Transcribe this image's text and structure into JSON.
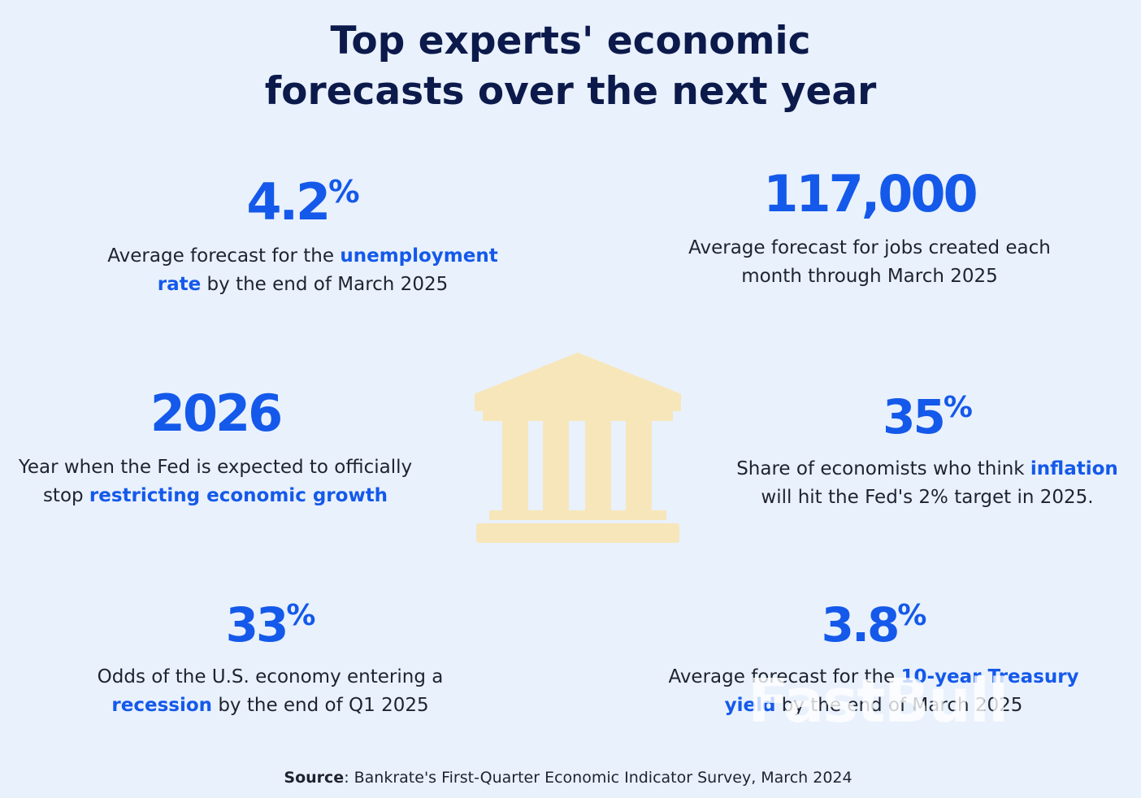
{
  "title": {
    "line1": "Top experts' economic",
    "line2": "forecasts over the next year"
  },
  "stats": {
    "unemployment": {
      "value": "4.2",
      "unit": "%",
      "desc1_pre": "Average forecast for the ",
      "desc1_hl": "unemployment",
      "desc2_hl": "rate",
      "desc2_post": " by the end of March 2025"
    },
    "jobs": {
      "value": "117,000",
      "desc1": "Average forecast for jobs created each",
      "desc2": "month through March 2025"
    },
    "fed": {
      "value": "2026",
      "desc1": "Year when the Fed is expected to officially",
      "desc2_pre": "stop ",
      "desc2_hl": "restricting economic growth"
    },
    "inflation": {
      "value": "35",
      "unit": "%",
      "desc1_pre": "Share of economists who think ",
      "desc1_hl": "inflation",
      "desc2": "will hit the Fed's 2% target in 2025."
    },
    "recession": {
      "value": "33",
      "unit": "%",
      "desc1": "Odds of the U.S. economy entering a",
      "desc2_hl": "recession",
      "desc2_post": " by the end of Q1 2025"
    },
    "treasury": {
      "value": "3.8",
      "unit": "%",
      "desc1_pre": "Average forecast for the ",
      "desc1_hl": "10-year Treasury",
      "desc2_hl": "yield",
      "desc2_post": " by the end of March 2025"
    }
  },
  "icon": {
    "name": "bank-building-icon",
    "color": "#f7e6b9"
  },
  "watermark": "FastBull",
  "source": {
    "label": "Source",
    "text": ": Bankrate's First-Quarter Economic Indicator Survey, March 2024"
  },
  "colors": {
    "background": "#e9f1fd",
    "title": "#0c1a4b",
    "accent": "#1459ea",
    "body_text": "#1f2330"
  }
}
